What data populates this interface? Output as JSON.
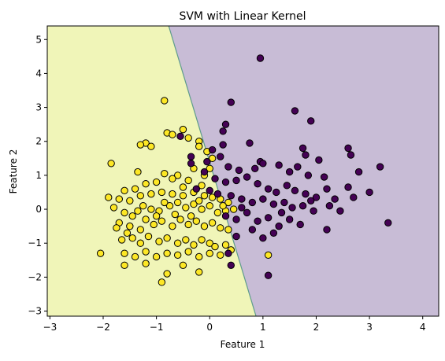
{
  "chart_data": {
    "type": "scatter",
    "title": "SVM with Linear Kernel",
    "xlabel": "Feature 1",
    "ylabel": "Feature 2",
    "xlim": [
      -3.05,
      4.3
    ],
    "ylim": [
      -3.15,
      5.4
    ],
    "x_ticks": [
      "−3",
      "−2",
      "−1",
      "0",
      "1",
      "2",
      "3",
      "4"
    ],
    "x_tick_values": [
      -3,
      -2,
      -1,
      0,
      1,
      2,
      3,
      4
    ],
    "y_ticks": [
      "−3",
      "−2",
      "−1",
      "0",
      "1",
      "2",
      "3",
      "4",
      "5"
    ],
    "y_tick_values": [
      -3,
      -2,
      -1,
      0,
      1,
      2,
      3,
      4,
      5
    ],
    "grid": false,
    "decision_boundary": {
      "points": [
        [
          -0.77,
          5.4
        ],
        [
          0.87,
          -3.15
        ]
      ],
      "left_region_color": "#f0f5b8",
      "right_region_color": "#c8bcd6",
      "boundary_color": "#5f9c8c"
    },
    "series": [
      {
        "color": "#fde725",
        "points": [
          [
            -0.85,
            3.2
          ],
          [
            -0.5,
            2.35
          ],
          [
            -0.8,
            2.25
          ],
          [
            -0.7,
            2.2
          ],
          [
            -1.2,
            1.95
          ],
          [
            -1.3,
            1.9
          ],
          [
            -1.1,
            1.85
          ],
          [
            -0.4,
            2.1
          ],
          [
            -0.2,
            2.0
          ],
          [
            -0.2,
            1.85
          ],
          [
            -0.05,
            1.7
          ],
          [
            0.05,
            1.5
          ],
          [
            0.0,
            1.2
          ],
          [
            -1.85,
            1.35
          ],
          [
            -1.35,
            1.1
          ],
          [
            -0.85,
            1.05
          ],
          [
            -0.6,
            1.0
          ],
          [
            -0.3,
            1.2
          ],
          [
            -0.1,
            1.0
          ],
          [
            -0.4,
            0.85
          ],
          [
            -0.7,
            0.9
          ],
          [
            -1.0,
            0.8
          ],
          [
            -1.2,
            0.75
          ],
          [
            -1.4,
            0.6
          ],
          [
            -1.6,
            0.55
          ],
          [
            -1.9,
            0.35
          ],
          [
            -1.7,
            0.3
          ],
          [
            -1.3,
            0.4
          ],
          [
            -1.1,
            0.45
          ],
          [
            -0.9,
            0.5
          ],
          [
            -0.7,
            0.45
          ],
          [
            -0.5,
            0.4
          ],
          [
            -0.3,
            0.5
          ],
          [
            -0.1,
            0.4
          ],
          [
            0.05,
            0.35
          ],
          [
            0.2,
            0.3
          ],
          [
            0.35,
            0.2
          ],
          [
            -1.8,
            0.05
          ],
          [
            -1.6,
            -0.1
          ],
          [
            -1.45,
            -0.2
          ],
          [
            -1.25,
            0.1
          ],
          [
            -1.1,
            0.0
          ],
          [
            -0.95,
            -0.05
          ],
          [
            -0.75,
            0.1
          ],
          [
            -0.6,
            0.2
          ],
          [
            -0.45,
            0.05
          ],
          [
            -0.3,
            0.15
          ],
          [
            -0.15,
            0.0
          ],
          [
            0.0,
            0.1
          ],
          [
            0.15,
            -0.1
          ],
          [
            0.3,
            -0.05
          ],
          [
            0.45,
            0.0
          ],
          [
            -1.7,
            -0.4
          ],
          [
            -1.5,
            -0.5
          ],
          [
            -1.3,
            -0.6
          ],
          [
            -1.2,
            -0.3
          ],
          [
            -1.05,
            -0.45
          ],
          [
            -0.9,
            -0.35
          ],
          [
            -0.7,
            -0.5
          ],
          [
            -0.55,
            -0.3
          ],
          [
            -0.4,
            -0.45
          ],
          [
            -0.25,
            -0.35
          ],
          [
            -0.1,
            -0.5
          ],
          [
            0.05,
            -0.4
          ],
          [
            0.2,
            -0.55
          ],
          [
            0.35,
            -0.6
          ],
          [
            -1.65,
            -0.9
          ],
          [
            -1.45,
            -0.85
          ],
          [
            -1.3,
            -1.0
          ],
          [
            -1.15,
            -0.8
          ],
          [
            -0.95,
            -0.95
          ],
          [
            -0.8,
            -0.85
          ],
          [
            -0.6,
            -1.0
          ],
          [
            -0.45,
            -0.9
          ],
          [
            -0.3,
            -1.05
          ],
          [
            -0.15,
            -0.9
          ],
          [
            0.0,
            -1.0
          ],
          [
            0.1,
            -1.1
          ],
          [
            0.3,
            -1.05
          ],
          [
            0.4,
            -1.2
          ],
          [
            -1.6,
            -1.3
          ],
          [
            -1.4,
            -1.4
          ],
          [
            -1.2,
            -1.25
          ],
          [
            -1.0,
            -1.4
          ],
          [
            -0.8,
            -1.3
          ],
          [
            -0.6,
            -1.35
          ],
          [
            -0.4,
            -1.25
          ],
          [
            -0.2,
            -1.4
          ],
          [
            0.0,
            -1.3
          ],
          [
            0.2,
            -1.35
          ],
          [
            -1.6,
            -1.65
          ],
          [
            -1.2,
            -1.6
          ],
          [
            -0.8,
            -1.9
          ],
          [
            -0.5,
            -1.65
          ],
          [
            -0.2,
            -1.85
          ],
          [
            -0.9,
            -2.15
          ],
          [
            -2.05,
            -1.3
          ],
          [
            1.1,
            -1.35
          ],
          [
            -1.75,
            -0.55
          ],
          [
            -1.55,
            -0.7
          ],
          [
            -1.0,
            -0.2
          ],
          [
            -0.85,
            0.2
          ],
          [
            -0.65,
            -0.15
          ],
          [
            -0.35,
            -0.2
          ],
          [
            -0.2,
            0.25
          ],
          [
            0.25,
            0.1
          ],
          [
            -0.5,
            0.65
          ],
          [
            -0.15,
            0.7
          ],
          [
            -1.5,
            0.25
          ],
          [
            -1.35,
            -0.05
          ]
        ]
      },
      {
        "color": "#440154",
        "points": [
          [
            0.95,
            4.45
          ],
          [
            0.4,
            3.15
          ],
          [
            1.6,
            2.9
          ],
          [
            1.9,
            2.6
          ],
          [
            0.3,
            2.5
          ],
          [
            0.25,
            2.3
          ],
          [
            -0.55,
            2.15
          ],
          [
            -0.35,
            1.55
          ],
          [
            0.05,
            1.75
          ],
          [
            0.25,
            1.9
          ],
          [
            0.75,
            1.95
          ],
          [
            0.95,
            1.4
          ],
          [
            1.0,
            1.35
          ],
          [
            1.75,
            1.8
          ],
          [
            1.8,
            1.6
          ],
          [
            2.05,
            1.45
          ],
          [
            2.6,
            1.8
          ],
          [
            2.65,
            1.6
          ],
          [
            0.35,
            1.25
          ],
          [
            0.55,
            1.15
          ],
          [
            0.85,
            1.2
          ],
          [
            1.3,
            1.3
          ],
          [
            1.5,
            1.1
          ],
          [
            1.65,
            1.25
          ],
          [
            1.85,
            1.0
          ],
          [
            2.15,
            0.95
          ],
          [
            2.8,
            1.1
          ],
          [
            3.2,
            1.25
          ],
          [
            -0.35,
            1.35
          ],
          [
            -0.1,
            1.1
          ],
          [
            0.1,
            0.9
          ],
          [
            0.3,
            0.8
          ],
          [
            0.5,
            0.85
          ],
          [
            0.7,
            0.95
          ],
          [
            0.9,
            0.75
          ],
          [
            1.1,
            0.6
          ],
          [
            1.25,
            0.5
          ],
          [
            1.45,
            0.7
          ],
          [
            1.6,
            0.55
          ],
          [
            1.8,
            0.45
          ],
          [
            2.0,
            0.35
          ],
          [
            2.2,
            0.6
          ],
          [
            2.35,
            0.3
          ],
          [
            2.6,
            0.65
          ],
          [
            3.0,
            0.5
          ],
          [
            -0.25,
            0.6
          ],
          [
            0.0,
            0.55
          ],
          [
            0.15,
            0.45
          ],
          [
            0.4,
            0.4
          ],
          [
            0.6,
            0.3
          ],
          [
            0.8,
            0.2
          ],
          [
            1.0,
            0.3
          ],
          [
            1.2,
            0.15
          ],
          [
            1.4,
            0.2
          ],
          [
            1.55,
            0.05
          ],
          [
            1.75,
            0.1
          ],
          [
            1.95,
            -0.05
          ],
          [
            2.25,
            0.1
          ],
          [
            2.45,
            -0.05
          ],
          [
            0.3,
            -0.2
          ],
          [
            0.5,
            -0.3
          ],
          [
            0.7,
            -0.1
          ],
          [
            0.9,
            -0.35
          ],
          [
            1.1,
            -0.25
          ],
          [
            1.3,
            -0.5
          ],
          [
            1.5,
            -0.3
          ],
          [
            1.7,
            -0.45
          ],
          [
            2.2,
            -0.6
          ],
          [
            0.5,
            -0.8
          ],
          [
            0.8,
            -0.6
          ],
          [
            1.0,
            -0.85
          ],
          [
            1.2,
            -0.7
          ],
          [
            0.35,
            -1.3
          ],
          [
            0.4,
            -1.65
          ],
          [
            1.1,
            -1.95
          ],
          [
            3.35,
            -0.4
          ],
          [
            0.6,
            0.05
          ],
          [
            1.35,
            -0.1
          ],
          [
            1.9,
            0.25
          ],
          [
            2.7,
            0.35
          ],
          [
            0.2,
            1.55
          ],
          [
            -0.05,
            1.4
          ]
        ]
      }
    ]
  }
}
